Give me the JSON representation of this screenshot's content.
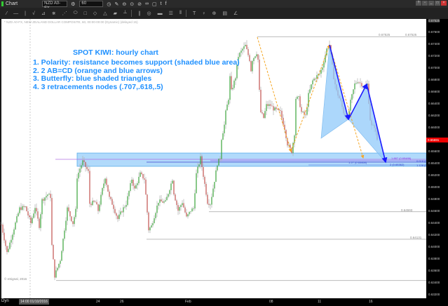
{
  "window": {
    "title": "Chart",
    "symbol": "NZD A0-FX",
    "interval": "60"
  },
  "toolbar_icons": [
    "line-tool",
    "horizontal-line",
    "vertical-line",
    "trend",
    "pitchfork",
    "fib",
    "gann",
    "ellipse",
    "rectangle",
    "ruler",
    "triangle",
    "brush",
    "measure",
    "parallel",
    "circle",
    "bars",
    "lines",
    "columns",
    "text",
    "pin",
    "marker",
    "table",
    "zoom"
  ],
  "chart_header": "* NZD A0-FX, NEW ZEALAND DOLLAR COMPOSITE, 60, 00:00-00:00 (Dynamic) (delayed 15)",
  "annotation": {
    "title": "SPOT KIWI: hourly chart",
    "lines": [
      "1. Polarity: resistance becomes support (shaded blue area)",
      "2. 2 AB=CD (orange and blue arrows)",
      "3. Butterfly: blue shaded triangles",
      "4. 3 retracements nodes (.707,.618,.5)"
    ],
    "color": "#1e90ff"
  },
  "levels": {
    "top": "0.67525",
    "top2": "0.67525",
    "mid": "0.64593",
    "low": "0.64131"
  },
  "fib_labels": [
    "1.887 (0.65486)",
    "1.27 (0.65468)",
    "2 (0.65362)",
    "0.618 (0",
    "1.128 (0."
  ],
  "copyright": "© eSignal, 2016",
  "bottom": {
    "mode": "Dyn",
    "datetime": "14:00 01/10/2016",
    "ticks": [
      "24",
      "26",
      "Feb",
      "08",
      "11",
      "16"
    ]
  },
  "chart_data": {
    "type": "candlestick",
    "ylim": [
      0.6312,
      0.678
    ],
    "yticks": [
      "0.67600",
      "0.67400",
      "0.67200",
      "0.67000",
      "0.66800",
      "0.66600",
      "0.66400",
      "0.66200",
      "0.66000",
      "0.65600",
      "0.65400",
      "0.65200",
      "0.65000",
      "0.64800",
      "0.64600",
      "0.64400",
      "0.64200",
      "0.64000",
      "0.63800",
      "0.63600",
      "0.63400",
      "0.63200"
    ],
    "top_label": "0.67525",
    "current_price": "0.65691",
    "colors": {
      "up": "#3aa33a",
      "down": "#c0504d",
      "wick": "#b0b0b0",
      "support_zone": "#90caf9",
      "abcd_orange": "#f5a623",
      "abcd_blue": "#1a1aff"
    },
    "support_zone": [
      0.65353,
      0.65576
    ],
    "horizontal_levels": [
      0.67525,
      0.64593,
      0.64131,
      0.6344
    ],
    "path_bars": [
      1,
      5,
      14,
      18,
      22,
      25,
      28,
      30,
      34,
      36,
      37,
      39,
      43,
      48,
      52,
      54,
      55,
      57,
      59,
      63,
      64,
      68,
      70,
      73,
      75,
      78,
      80,
      84,
      87,
      90,
      94,
      96,
      100,
      103,
      104,
      106,
      108,
      113,
      118,
      120,
      123,
      124,
      127,
      130,
      133,
      136,
      138,
      140,
      143,
      145,
      147,
      148,
      150,
      153,
      155,
      157,
      158,
      160,
      161,
      163,
      164,
      165,
      168,
      170,
      173,
      175,
      178,
      179,
      180,
      183,
      184,
      185,
      186,
      188,
      190,
      193,
      195,
      200,
      203,
      205,
      208,
      210,
      211,
      213,
      215,
      218,
      220,
      223,
      225,
      228,
      230,
      233,
      235,
      238,
      240,
      243,
      245,
      248,
      250,
      253,
      255,
      258,
      260,
      262,
      264,
      265,
      267,
      269
    ],
    "path_prices": [
      0.64376,
      0.63906,
      0.64647,
      0.64671,
      0.644,
      0.64671,
      0.64353,
      0.64788,
      0.64882,
      0.64847,
      0.64024,
      0.63518,
      0.63788,
      0.64647,
      0.644,
      0.64612,
      0.65176,
      0.65318,
      0.65435,
      0.65259,
      0.64729,
      0.64753,
      0.64612,
      0.64965,
      0.65176,
      0.64824,
      0.64729,
      0.64471,
      0.64612,
      0.64729,
      0.65141,
      0.64965,
      0.65224,
      0.65141,
      0.64871,
      0.64294,
      0.64353,
      0.64765,
      0.64753,
      0.64906,
      0.65141,
      0.64906,
      0.64612,
      0.64753,
      0.64494,
      0.64612,
      0.64647,
      0.65224,
      0.65494,
      0.652,
      0.64906,
      0.64753,
      0.64729,
      0.65118,
      0.654,
      0.65494,
      0.65824,
      0.66047,
      0.66259,
      0.66494,
      0.66847,
      0.66612,
      0.66847,
      0.672,
      0.67318,
      0.67376,
      0.67141,
      0.66965,
      0.67141,
      0.67259,
      0.67141,
      0.66612,
      0.66259,
      0.66165,
      0.66376,
      0.66376,
      0.66318,
      0.66259,
      0.65988,
      0.65729,
      0.656,
      0.65906,
      0.66494,
      0.66494,
      0.66259,
      0.662,
      0.66553,
      0.66788,
      0.66847,
      0.66906,
      0.67024,
      0.67318,
      0.67388,
      0.66847,
      0.66612,
      0.66435,
      0.66259,
      0.66141,
      0.66435,
      0.66729,
      0.66788,
      0.66729,
      0.66671,
      0.66729,
      0.66141,
      0.66024,
      0.66024,
      0.658
    ],
    "abcd_orange": [
      [
        183.5,
        0.67518
      ],
      [
        207.5,
        0.656
      ],
      [
        235,
        0.67388
      ],
      [
        259,
        0.65494
      ]
    ],
    "abcd_blue": [
      [
        235,
        0.67388
      ],
      [
        248.5,
        0.66141
      ],
      [
        261.5,
        0.66729
      ],
      [
        275,
        0.65424
      ]
    ],
    "butterfly_1": [
      [
        229,
        0.65824
      ],
      [
        235,
        0.67388
      ],
      [
        248.5,
        0.66141
      ]
    ],
    "butterfly_2": [
      [
        248.5,
        0.66141
      ],
      [
        261.5,
        0.66729
      ],
      [
        275,
        0.65424
      ]
    ]
  }
}
